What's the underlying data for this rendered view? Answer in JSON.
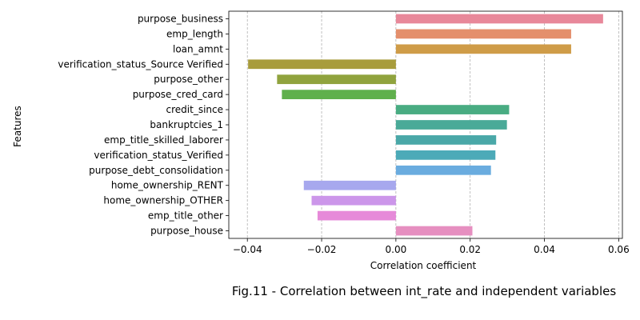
{
  "chart_data": {
    "type": "bar",
    "orientation": "horizontal",
    "caption": "Fig.11 - Correlation between int_rate and independent variables",
    "xlabel": "Correlation coefficient",
    "ylabel": "Features",
    "xlim": [
      -0.045,
      0.061
    ],
    "xticks": [
      -0.04,
      -0.02,
      0.0,
      0.02,
      0.04,
      0.06
    ],
    "xtick_labels": [
      "−0.04",
      "−0.02",
      "0.00",
      "0.02",
      "0.04",
      "0.06"
    ],
    "grid": "vertical dashed",
    "categories": [
      "purpose_business",
      "emp_length",
      "loan_amnt",
      "verification_status_Source Verified",
      "purpose_other",
      "purpose_cred_card",
      "credit_since",
      "bankruptcies_1",
      "emp_title_skilled_laborer",
      "verification_status_Verified",
      "purpose_debt_consolidation",
      "home_ownership_RENT",
      "home_ownership_OTHER",
      "emp_title_other",
      "purpose_house"
    ],
    "values": [
      0.0558,
      0.0472,
      0.0472,
      -0.0398,
      -0.032,
      -0.0307,
      0.0305,
      0.0299,
      0.027,
      0.0268,
      0.0256,
      -0.0248,
      -0.0227,
      -0.0211,
      0.0206
    ],
    "colors": [
      "#e8889a",
      "#e48f6c",
      "#cf9c48",
      "#a89c3c",
      "#90a33e",
      "#5fb04c",
      "#49ac82",
      "#4aaa98",
      "#4aa8a8",
      "#4caab8",
      "#6aacdf",
      "#a7a8ee",
      "#cc96ea",
      "#e68ad9",
      "#e68fc0"
    ]
  }
}
